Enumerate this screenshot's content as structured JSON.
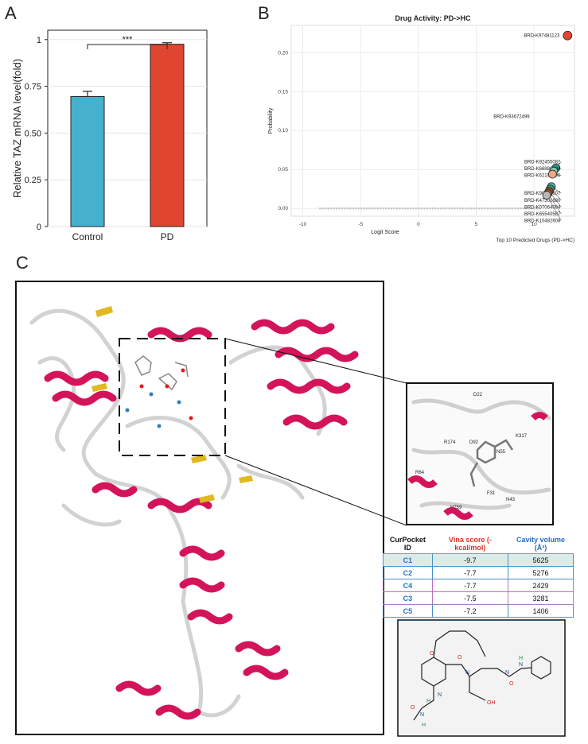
{
  "panels": {
    "a": "A",
    "b": "B",
    "c": "C"
  },
  "colors": {
    "control": "#46b1cc",
    "pd": "#e0462f",
    "helix": "#d4145a",
    "sheet": "#e0b81f",
    "coil": "#d9d9d9",
    "teal": "#2a9d8f",
    "orange": "#e76f51",
    "brown": "#7a4b3a"
  },
  "chart_data": [
    {
      "type": "bar",
      "categories": [
        "Control",
        "PD"
      ],
      "values": [
        0.695,
        0.975
      ],
      "errors": [
        0.028,
        0.008
      ],
      "ylabel": "Relative TAZ mRNA level(fold)",
      "ylim": [
        0,
        1.05
      ],
      "yticks": [
        0,
        0.25,
        0.5,
        0.75,
        1
      ],
      "ytick_labels": [
        "0",
        "0.25",
        "0.50",
        "0.75",
        "1"
      ],
      "significance": "***",
      "grid": true
    },
    {
      "type": "scatter",
      "title": "Drug Activity: PD->HC",
      "xlabel": "Logit Score",
      "ylabel": "Probability",
      "xlim": [
        -11,
        13.5
      ],
      "ylim": [
        -0.01,
        0.235
      ],
      "xticks": [
        -10,
        -5,
        0,
        5,
        10
      ],
      "yticks": [
        0,
        0.05,
        0.1,
        0.15,
        0.2
      ],
      "ytick_labels": [
        "0.00",
        "0.05",
        "0.10",
        "0.15",
        "0.20"
      ],
      "caption": "Top 10 Predicted Drugs (PD->HC)",
      "highlighted": [
        {
          "label": "BRD-K97481123",
          "x": 12.9,
          "y": 0.222,
          "color": "#e0462f"
        },
        {
          "label": "BRD-K93672499",
          "x": null,
          "y": 0.118,
          "color": "#ffffff"
        },
        {
          "label": "BRD-K92455082",
          "x": 11.9,
          "y": 0.052,
          "color": "#2a9d8f"
        },
        {
          "label": "BRD-K66886904",
          "x": 11.7,
          "y": 0.048,
          "color": "#7ec8b0"
        },
        {
          "label": "BRD-K62102996",
          "x": 11.6,
          "y": 0.044,
          "color": "#f4a582"
        },
        {
          "label": "BRD-K90816807",
          "x": 11.5,
          "y": 0.028,
          "color": "#5ab4ac"
        },
        {
          "label": "BRD-K47301880",
          "x": 11.4,
          "y": 0.025,
          "color": "#2a9d8f"
        },
        {
          "label": "BRD-K07064094",
          "x": 11.3,
          "y": 0.022,
          "color": "#8c510a"
        },
        {
          "label": "BRD-K65540587",
          "x": 11.2,
          "y": 0.019,
          "color": "#d6604d"
        },
        {
          "label": "BRD-K10482608",
          "x": 11.1,
          "y": 0.017,
          "color": "#bababa"
        }
      ],
      "background_x_range": [
        -8.5,
        10.5
      ],
      "grid": true
    }
  ],
  "structure": {
    "residue_labels": [
      "D22",
      "D92",
      "K317",
      "R174",
      "R64",
      "H759",
      "N43",
      "N55",
      "F31"
    ]
  },
  "table": {
    "headers": [
      "CurPocket ID",
      "Vina score (-kcal/mol)",
      "Cavity volume (Å³)"
    ],
    "rows": [
      [
        "C1",
        "-9.7",
        "5625"
      ],
      [
        "C2",
        "-7.7",
        "5276"
      ],
      [
        "C4",
        "-7.7",
        "2429"
      ],
      [
        "C3",
        "-7.5",
        "3281"
      ],
      [
        "C5",
        "-7.2",
        "1406"
      ]
    ]
  },
  "molecule": {
    "atom_labels": [
      "O",
      "O",
      "N",
      "N",
      "N",
      "H",
      "O",
      "N",
      "N",
      "H",
      "OH",
      "H",
      "O"
    ]
  }
}
